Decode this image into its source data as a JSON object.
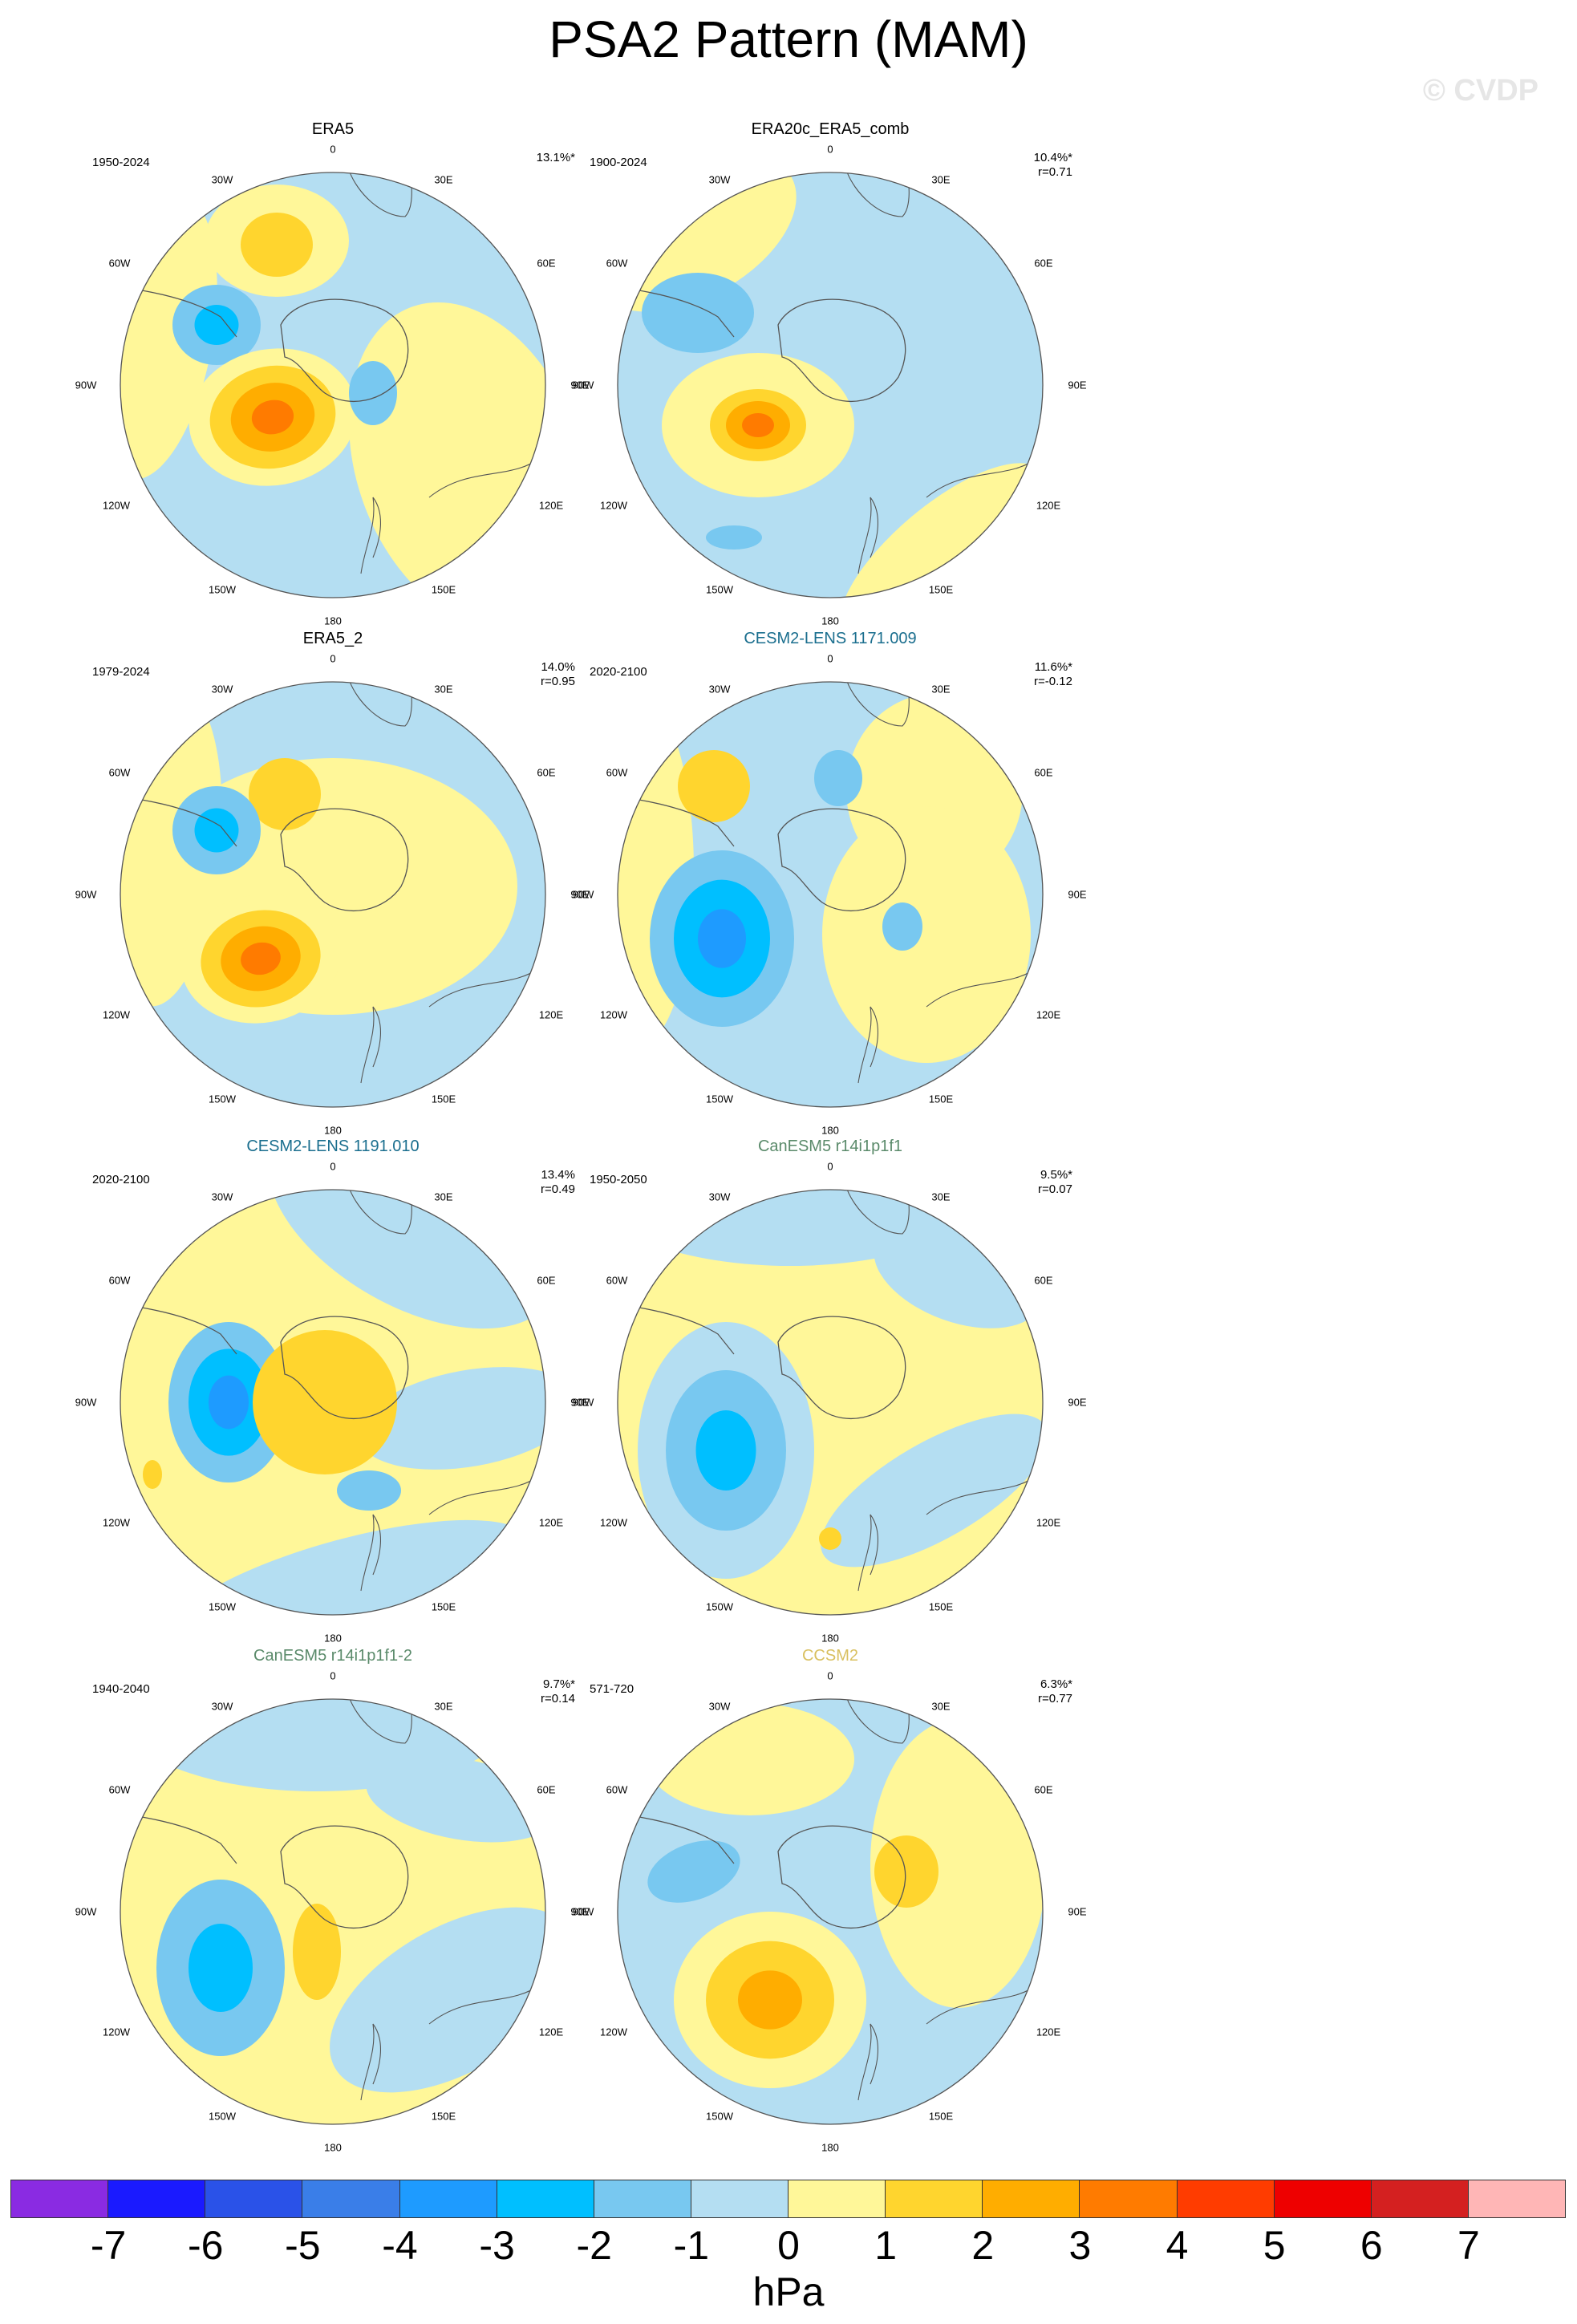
{
  "figure": {
    "title": "PSA2 Pattern (MAM)",
    "watermark": "© CVDP",
    "unit": "hPa"
  },
  "panels": [
    {
      "title": "ERA5",
      "title_color": "#000000",
      "period": "1950-2024",
      "stats": "13.1%*"
    },
    {
      "title": "ERA20c_ERA5_comb",
      "title_color": "#000000",
      "period": "1900-2024",
      "stats": "10.4%*\nr=0.71"
    },
    {
      "title": "ERA5_2",
      "title_color": "#000000",
      "period": "1979-2024",
      "stats": "14.0%\nr=0.95"
    },
    {
      "title": "CESM2-LENS 1171.009",
      "title_color": "#1a6e8e",
      "period": "2020-2100",
      "stats": "11.6%*\nr=-0.12"
    },
    {
      "title": "CESM2-LENS 1191.010",
      "title_color": "#1a6e8e",
      "period": "2020-2100",
      "stats": "13.4%\nr=0.49"
    },
    {
      "title": "CanESM5 r14i1p1f1",
      "title_color": "#5a8a6a",
      "period": "1950-2050",
      "stats": "9.5%*\nr=0.07"
    },
    {
      "title": "CanESM5 r14i1p1f1-2",
      "title_color": "#5a8a6a",
      "period": "1940-2040",
      "stats": "9.7%*\nr=0.14"
    },
    {
      "title": "CCSM2",
      "title_color": "#d9c060",
      "period": "571-720",
      "stats": "6.3%*\nr=0.77"
    }
  ],
  "map_labels": {
    "top": "0",
    "bottom": "180",
    "30W": "30W",
    "30E": "30E",
    "60W": "60W",
    "60E": "60E",
    "90W": "90W",
    "90E": "90E",
    "120W": "120W",
    "120E": "120E",
    "150W": "150W",
    "150E": "150E"
  },
  "colorbar": {
    "colors": [
      "#8a2be2",
      "#1a1aff",
      "#2a52e8",
      "#3a7ee8",
      "#1e9bff",
      "#00bfff",
      "#78c8f0",
      "#b4def2",
      "#fff799",
      "#ffd52e",
      "#ffad00",
      "#ff7b00",
      "#ff3c00",
      "#ee0000",
      "#d42020",
      "#ffb6b6"
    ],
    "ticks": [
      "-7",
      "-6",
      "-5",
      "-4",
      "-3",
      "-2",
      "-1",
      "0",
      "1",
      "2",
      "3",
      "4",
      "5",
      "6",
      "7"
    ]
  },
  "map_colors": {
    "pos1": "#fff799",
    "pos2": "#ffd52e",
    "pos3": "#ffad00",
    "pos4": "#ff7b00",
    "neg1": "#b4def2",
    "neg2": "#78c8f0",
    "neg3": "#00bfff",
    "neg4": "#1e9bff"
  }
}
